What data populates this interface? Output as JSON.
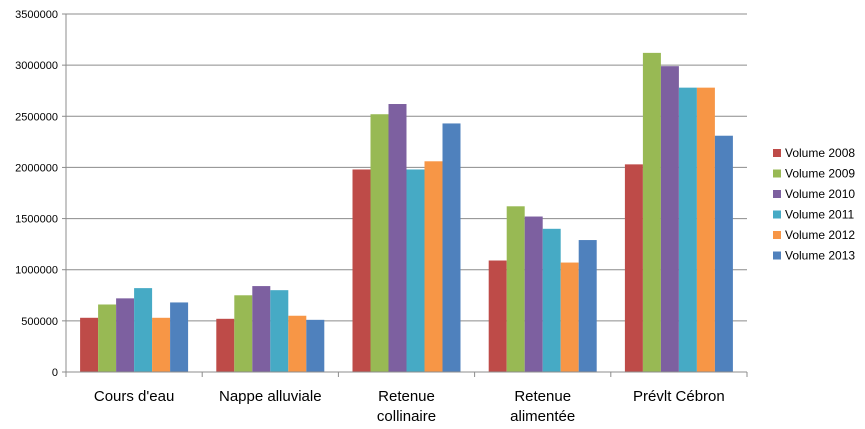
{
  "chart_data": {
    "type": "bar",
    "title": "",
    "xlabel": "",
    "ylabel": "",
    "ylim": [
      0,
      3500000
    ],
    "yticks": [
      "0",
      "500000",
      "1000000",
      "1500000",
      "2000000",
      "2500000",
      "3000000",
      "3500000"
    ],
    "grid": true,
    "legend_position": "right",
    "categories": [
      [
        "Cours d'eau"
      ],
      [
        "Nappe alluviale"
      ],
      [
        "Retenue",
        "collinaire"
      ],
      [
        "Retenue",
        "alimentée"
      ],
      [
        "Prévlt Cébron"
      ]
    ],
    "series": [
      {
        "name": "Volume 2008",
        "color": "#BE4B48",
        "values": [
          530000,
          520000,
          1980000,
          1090000,
          2030000
        ]
      },
      {
        "name": "Volume 2009",
        "color": "#98B954",
        "values": [
          660000,
          750000,
          2520000,
          1620000,
          3120000
        ]
      },
      {
        "name": "Volume 2010",
        "color": "#7D60A0",
        "values": [
          720000,
          840000,
          2620000,
          1520000,
          2990000
        ]
      },
      {
        "name": "Volume 2011",
        "color": "#46AAC5",
        "values": [
          820000,
          800000,
          1980000,
          1400000,
          2780000
        ]
      },
      {
        "name": "Volume 2012",
        "color": "#F79646",
        "values": [
          530000,
          550000,
          2060000,
          1070000,
          2780000
        ]
      },
      {
        "name": "Volume 2013",
        "color": "#4F81BD",
        "values": [
          680000,
          510000,
          2430000,
          1290000,
          2310000
        ]
      }
    ]
  }
}
